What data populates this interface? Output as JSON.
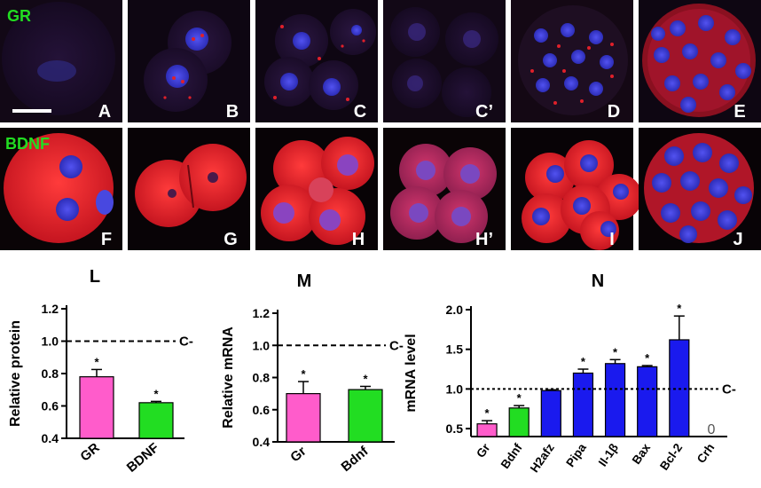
{
  "micrographs": {
    "row1_label": "GR",
    "row2_label": "BDNF",
    "label_color": "#22dd22",
    "panel_letter_color": "#ffffff",
    "panels": [
      {
        "letter": "A",
        "image": "one-cell-embryo-gr-stain"
      },
      {
        "letter": "B",
        "image": "two-cell-embryo-gr-stain"
      },
      {
        "letter": "C",
        "image": "four-cell-embryo-gr-stain"
      },
      {
        "letter": "C’",
        "image": "four-cell-embryo-gr-stain-control"
      },
      {
        "letter": "D",
        "image": "morula-gr-stain"
      },
      {
        "letter": "E",
        "image": "blastocyst-gr-stain"
      },
      {
        "letter": "F",
        "image": "one-cell-embryo-bdnf-stain"
      },
      {
        "letter": "G",
        "image": "two-cell-embryo-bdnf-stain"
      },
      {
        "letter": "H",
        "image": "four-cell-embryo-bdnf-stain"
      },
      {
        "letter": "H’",
        "image": "four-cell-embryo-bdnf-stain-control"
      },
      {
        "letter": "I",
        "image": "eight-cell-embryo-bdnf-stain"
      },
      {
        "letter": "J",
        "image": "blastocyst-bdnf-stain"
      }
    ]
  },
  "colors": {
    "pink": "#ff5ccb",
    "green": "#22dd22",
    "blue": "#1a1aee",
    "stain_red": "#e0202a",
    "nucleus_blue": "#3b3bd8"
  },
  "chart_data": [
    {
      "type": "bar",
      "panel_letter": "L",
      "title": "",
      "xlabel": "",
      "ylabel": "Relative protein",
      "ylim": [
        0.4,
        1.2
      ],
      "yticks": [
        "0.4",
        "0.6",
        "0.8",
        "1.0",
        "1.2"
      ],
      "categories": [
        "GR",
        "BDNF"
      ],
      "values": [
        0.78,
        0.62
      ],
      "errors": [
        0.045,
        0.008
      ],
      "significance": [
        "*",
        "*"
      ],
      "bar_colors": [
        "pink",
        "green"
      ],
      "reference_line": {
        "value": 1.0,
        "label": "C-"
      },
      "grid": false
    },
    {
      "type": "bar",
      "panel_letter": "M",
      "title": "",
      "xlabel": "",
      "ylabel": "Relative mRNA",
      "ylim": [
        0.4,
        1.2
      ],
      "yticks": [
        "0.4",
        "0.6",
        "0.8",
        "1.0",
        "1.2"
      ],
      "categories": [
        "Gr",
        "Bdnf"
      ],
      "values": [
        0.7,
        0.725
      ],
      "errors": [
        0.075,
        0.02
      ],
      "significance": [
        "*",
        "*"
      ],
      "bar_colors": [
        "pink",
        "green"
      ],
      "reference_line": {
        "value": 1.0,
        "label": "C-"
      },
      "grid": false
    },
    {
      "type": "bar",
      "panel_letter": "N",
      "title": "",
      "xlabel": "",
      "ylabel": "mRNA level",
      "ylim": [
        0.4,
        2.0
      ],
      "yticks": [
        "0.5",
        "1.0",
        "1.5",
        "2.0"
      ],
      "categories": [
        "Gr",
        "Bdnf",
        "H2afz",
        "Pipa",
        "Il-1β",
        "Bax",
        "Bcl-2",
        "Crh"
      ],
      "values": [
        0.56,
        0.76,
        0.98,
        1.2,
        1.32,
        1.28,
        1.62,
        0
      ],
      "errors": [
        0.04,
        0.03,
        0.01,
        0.05,
        0.05,
        0.015,
        0.3,
        0
      ],
      "significance": [
        "*",
        "*",
        "",
        "*",
        "*",
        "*",
        "*",
        ""
      ],
      "value_labels": [
        "",
        "",
        "",
        "",
        "",
        "",
        "",
        "0"
      ],
      "bar_colors": [
        "pink",
        "green",
        "blue",
        "blue",
        "blue",
        "blue",
        "blue",
        "blue"
      ],
      "reference_line": {
        "value": 1.0,
        "label": "C-"
      },
      "grid": false
    }
  ]
}
